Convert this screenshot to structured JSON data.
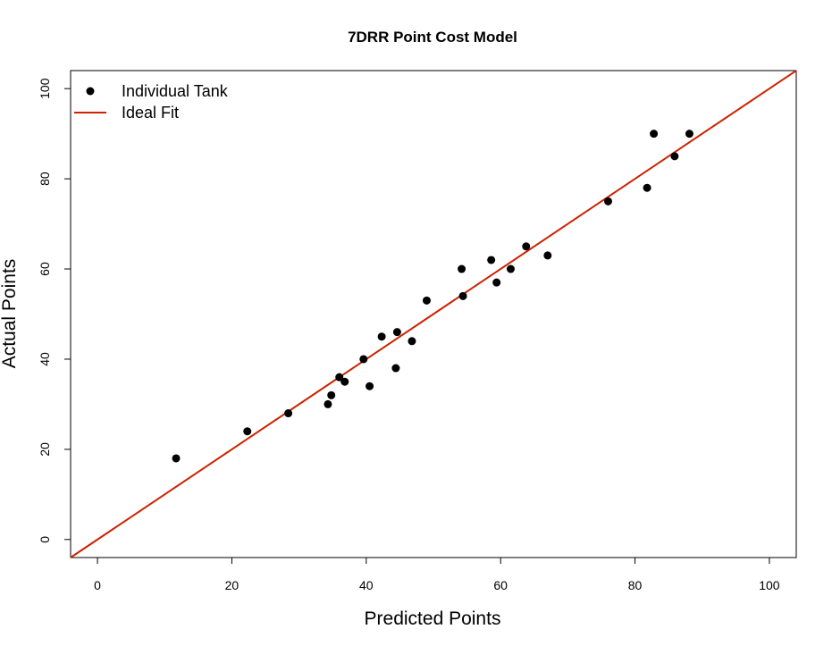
{
  "chart_data": {
    "type": "scatter",
    "title": "7DRR Point Cost Model",
    "xlabel": "Predicted Points",
    "ylabel": "Actual Points",
    "xlim": [
      -4,
      104
    ],
    "ylim": [
      -4,
      104
    ],
    "x_ticks": [
      0,
      20,
      40,
      60,
      80,
      100
    ],
    "y_ticks": [
      0,
      20,
      40,
      60,
      80,
      100
    ],
    "x_tick_labels": [
      "0",
      "20",
      "40",
      "60",
      "80",
      "100"
    ],
    "y_tick_labels": [
      "0",
      "20",
      "40",
      "60",
      "80",
      "100"
    ],
    "series": [
      {
        "name": "Individual Tank",
        "kind": "points",
        "color": "#000000",
        "points": [
          {
            "x": 11.7,
            "y": 18
          },
          {
            "x": 22.3,
            "y": 24
          },
          {
            "x": 28.4,
            "y": 28
          },
          {
            "x": 34.3,
            "y": 30
          },
          {
            "x": 34.8,
            "y": 32
          },
          {
            "x": 36.0,
            "y": 36
          },
          {
            "x": 36.8,
            "y": 35
          },
          {
            "x": 39.6,
            "y": 40
          },
          {
            "x": 40.5,
            "y": 34
          },
          {
            "x": 42.3,
            "y": 45
          },
          {
            "x": 44.4,
            "y": 38
          },
          {
            "x": 44.6,
            "y": 46
          },
          {
            "x": 46.8,
            "y": 44
          },
          {
            "x": 49.0,
            "y": 53
          },
          {
            "x": 54.2,
            "y": 60
          },
          {
            "x": 54.4,
            "y": 54
          },
          {
            "x": 58.6,
            "y": 62
          },
          {
            "x": 59.4,
            "y": 57
          },
          {
            "x": 61.5,
            "y": 60
          },
          {
            "x": 63.8,
            "y": 65
          },
          {
            "x": 67.0,
            "y": 63
          },
          {
            "x": 76.0,
            "y": 75
          },
          {
            "x": 81.8,
            "y": 78
          },
          {
            "x": 82.8,
            "y": 90
          },
          {
            "x": 85.9,
            "y": 85
          },
          {
            "x": 88.1,
            "y": 90
          }
        ]
      },
      {
        "name": "Ideal Fit",
        "kind": "line",
        "color": "#cc2200",
        "intercept": 0,
        "slope": 1
      }
    ],
    "legend": {
      "position": "top-left",
      "entries": [
        {
          "label": "Individual Tank",
          "marker": "point",
          "color": "#000000"
        },
        {
          "label": "Ideal Fit",
          "marker": "line",
          "color": "#cc2200"
        }
      ]
    },
    "grid": false
  }
}
